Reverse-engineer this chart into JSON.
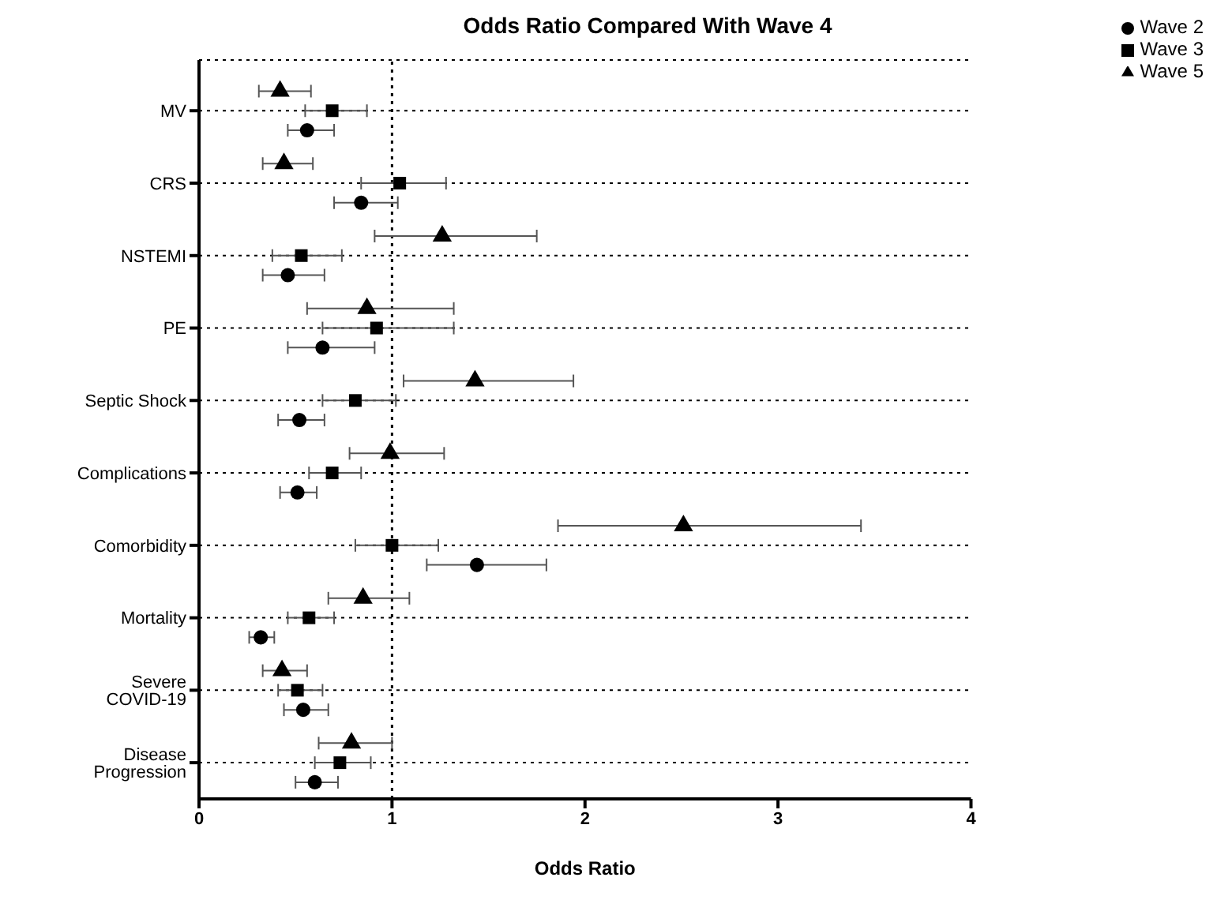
{
  "chart_data": {
    "type": "scatter",
    "title": "Odds Ratio Compared With Wave 4",
    "xlabel": "Odds Ratio",
    "orientation": "horizontal",
    "categories": [
      "MV",
      "CRS",
      "NSTEMI",
      "PE",
      "Septic Shock",
      "Complications",
      "Comorbidity",
      "Mortality",
      "Severe COVID-19",
      "Disease Progression"
    ],
    "xlim": [
      0,
      4
    ],
    "xticks": [
      0,
      1,
      2,
      3,
      4
    ],
    "grid": "y",
    "legend": "top right",
    "ref_lines": [
      {
        "axis": "x",
        "value": 1,
        "line_style": "dotted",
        "color": "#000000"
      }
    ],
    "series": [
      {
        "name": "Wave 2",
        "color": "#000000",
        "marker": "circle",
        "values": [
          0.56,
          0.84,
          0.46,
          0.64,
          0.52,
          0.51,
          1.44,
          0.32,
          0.54,
          0.6
        ],
        "errors": [
          [
            0.46,
            0.7
          ],
          [
            0.7,
            1.03
          ],
          [
            0.33,
            0.65
          ],
          [
            0.46,
            0.91
          ],
          [
            0.41,
            0.65
          ],
          [
            0.42,
            0.61
          ],
          [
            1.18,
            1.8
          ],
          [
            0.26,
            0.39
          ],
          [
            0.44,
            0.67
          ],
          [
            0.5,
            0.72
          ]
        ]
      },
      {
        "name": "Wave 3",
        "color": "#000000",
        "marker": "square",
        "values": [
          0.69,
          1.04,
          0.53,
          0.92,
          0.81,
          0.69,
          1.0,
          0.57,
          0.51,
          0.73
        ],
        "errors": [
          [
            0.55,
            0.87
          ],
          [
            0.84,
            1.28
          ],
          [
            0.38,
            0.74
          ],
          [
            0.64,
            1.32
          ],
          [
            0.64,
            1.02
          ],
          [
            0.57,
            0.84
          ],
          [
            0.81,
            1.24
          ],
          [
            0.46,
            0.7
          ],
          [
            0.41,
            0.64
          ],
          [
            0.6,
            0.89
          ]
        ]
      },
      {
        "name": "Wave 5",
        "color": "#000000",
        "marker": "triangle",
        "values": [
          0.42,
          0.44,
          1.26,
          0.87,
          1.43,
          0.99,
          2.51,
          0.85,
          0.43,
          0.79
        ],
        "errors": [
          [
            0.31,
            0.58
          ],
          [
            0.33,
            0.59
          ],
          [
            0.91,
            1.75
          ],
          [
            0.56,
            1.32
          ],
          [
            1.06,
            1.94
          ],
          [
            0.78,
            1.27
          ],
          [
            1.86,
            3.43
          ],
          [
            0.67,
            1.09
          ],
          [
            0.33,
            0.56
          ],
          [
            0.62,
            1.0
          ]
        ]
      }
    ]
  }
}
